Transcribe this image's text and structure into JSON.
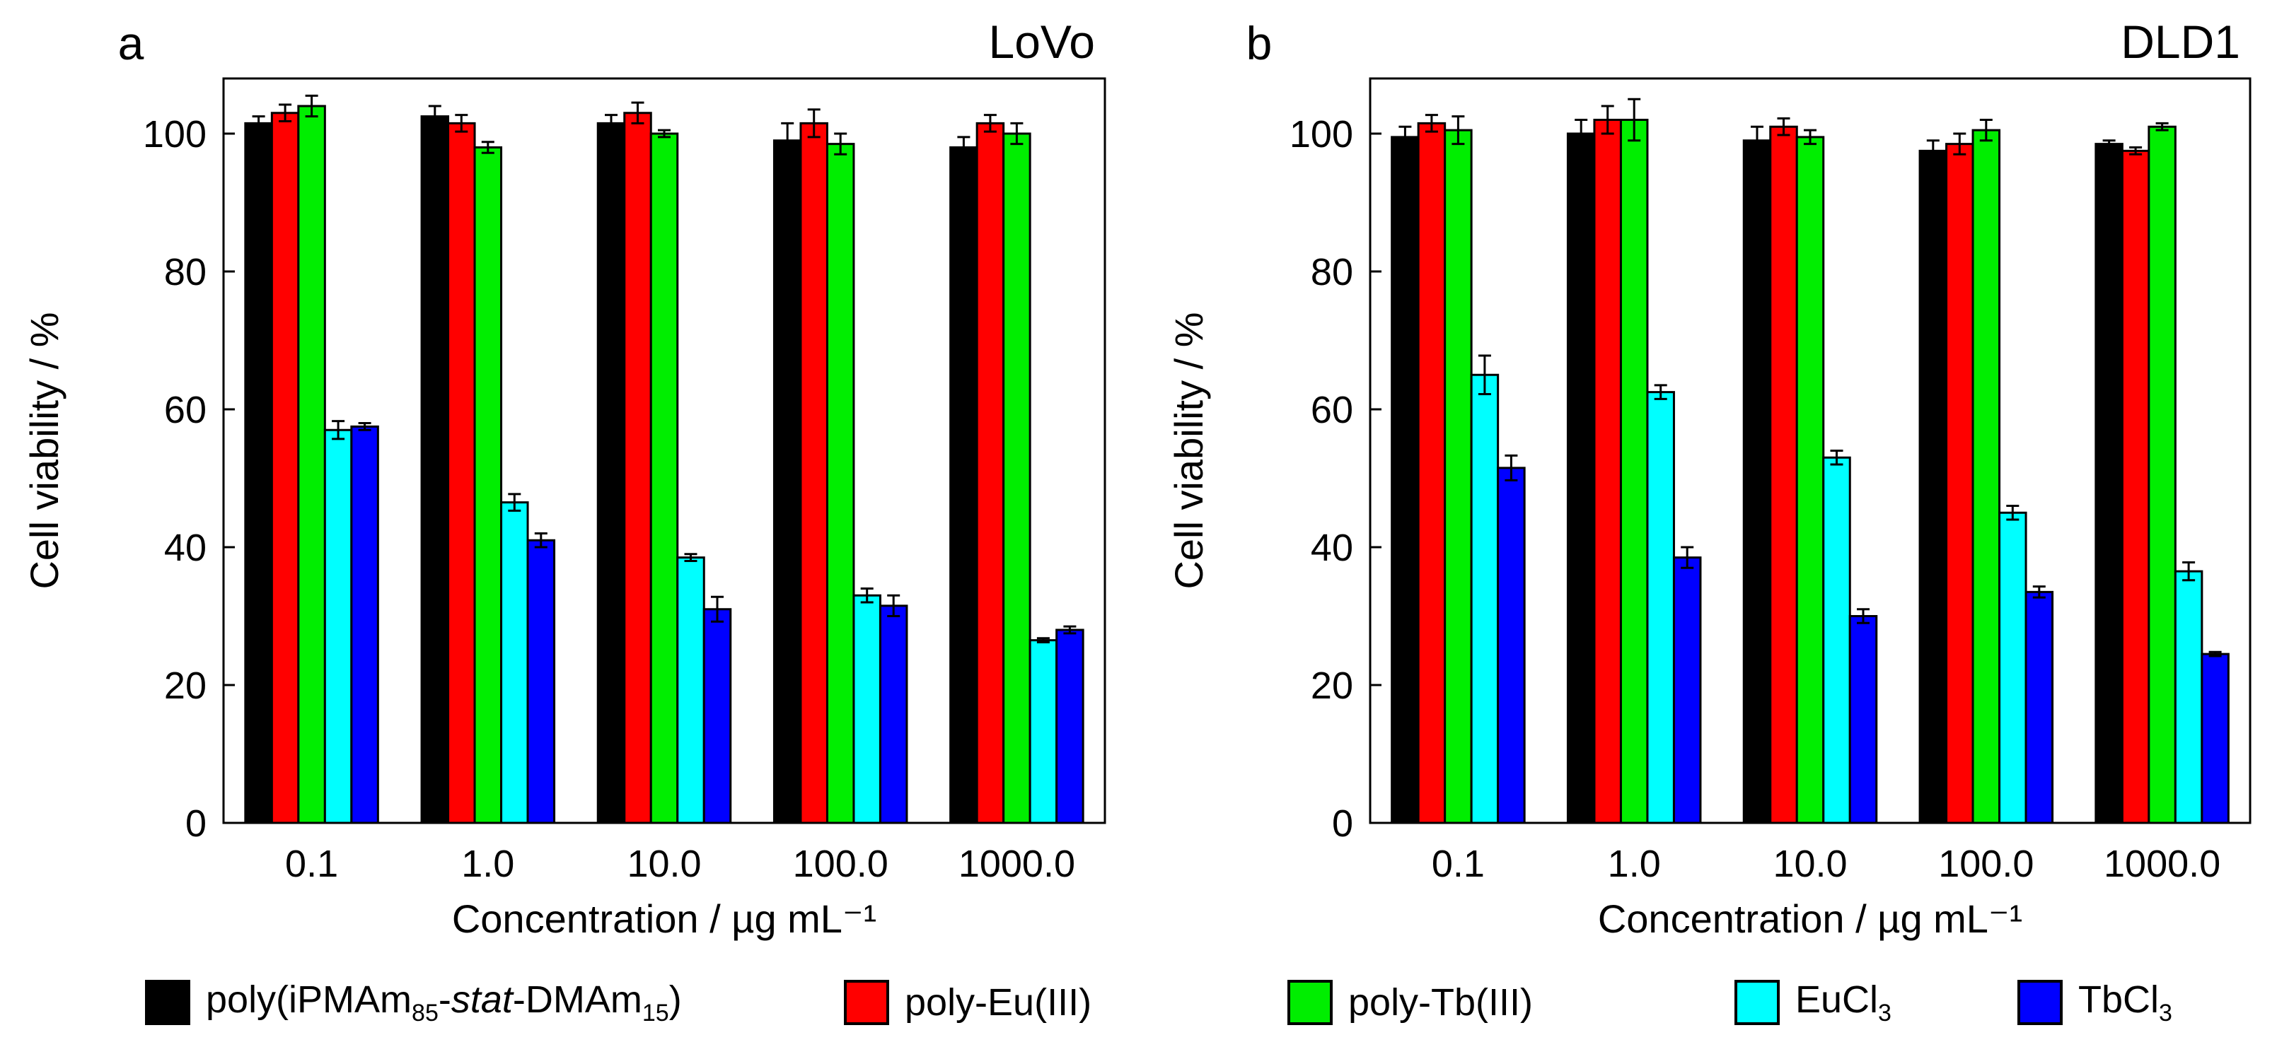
{
  "chart_data": [
    {
      "type": "bar",
      "panel_label": "a",
      "title": "LoVo",
      "xlabel": "Concentration / µg mL⁻¹",
      "ylabel": "Cell viability / %",
      "ylim": [
        0,
        108
      ],
      "yticks": [
        0,
        20,
        40,
        60,
        80,
        100
      ],
      "categories": [
        "0.1",
        "1.0",
        "10.0",
        "100.0",
        "1000.0"
      ],
      "series": [
        {
          "name": "poly(iPMAm85-stat-DMAm15)",
          "values": [
            101.5,
            102.5,
            101.5,
            99.0,
            98.0
          ],
          "errors": [
            1.0,
            1.5,
            1.2,
            2.5,
            1.5
          ]
        },
        {
          "name": "poly-Eu(III)",
          "values": [
            103.0,
            101.5,
            103.0,
            101.5,
            101.5
          ],
          "errors": [
            1.2,
            1.2,
            1.5,
            2.0,
            1.2
          ]
        },
        {
          "name": "poly-Tb(III)",
          "values": [
            104.0,
            98.0,
            100.0,
            98.5,
            100.0
          ],
          "errors": [
            1.5,
            0.8,
            0.5,
            1.5,
            1.5
          ]
        },
        {
          "name": "EuCl3",
          "values": [
            57.0,
            46.5,
            38.5,
            33.0,
            26.5
          ],
          "errors": [
            1.3,
            1.2,
            0.5,
            1.0,
            0.3
          ]
        },
        {
          "name": "TbCl3",
          "values": [
            57.5,
            41.0,
            31.0,
            31.5,
            28.0
          ],
          "errors": [
            0.5,
            1.0,
            1.8,
            1.5,
            0.5
          ]
        }
      ]
    },
    {
      "type": "bar",
      "panel_label": "b",
      "title": "DLD1",
      "xlabel": "Concentration / µg mL⁻¹",
      "ylabel": "Cell viability / %",
      "ylim": [
        0,
        108
      ],
      "yticks": [
        0,
        20,
        40,
        60,
        80,
        100
      ],
      "categories": [
        "0.1",
        "1.0",
        "10.0",
        "100.0",
        "1000.0"
      ],
      "series": [
        {
          "name": "poly(iPMAm85-stat-DMAm15)",
          "values": [
            99.5,
            100.0,
            99.0,
            97.5,
            98.5
          ],
          "errors": [
            1.5,
            2.0,
            2.0,
            1.5,
            0.5
          ]
        },
        {
          "name": "poly-Eu(III)",
          "values": [
            101.5,
            102.0,
            101.0,
            98.5,
            97.5
          ],
          "errors": [
            1.2,
            2.0,
            1.2,
            1.5,
            0.5
          ]
        },
        {
          "name": "poly-Tb(III)",
          "values": [
            100.5,
            102.0,
            99.5,
            100.5,
            101.0
          ],
          "errors": [
            2.0,
            3.0,
            1.0,
            1.5,
            0.5
          ]
        },
        {
          "name": "EuCl3",
          "values": [
            65.0,
            62.5,
            53.0,
            45.0,
            36.5
          ],
          "errors": [
            2.8,
            1.0,
            1.0,
            1.0,
            1.3
          ]
        },
        {
          "name": "TbCl3",
          "values": [
            51.5,
            38.5,
            30.0,
            33.5,
            24.5
          ],
          "errors": [
            1.8,
            1.5,
            1.0,
            0.8,
            0.3
          ]
        }
      ]
    }
  ],
  "legend": {
    "items": [
      {
        "key": "s0",
        "label": "poly(iPMAm85-stat-DMAm15)",
        "color": "#000000"
      },
      {
        "key": "s1",
        "label": "poly-Eu(III)",
        "color": "#ff0000"
      },
      {
        "key": "s2",
        "label": "poly-Tb(III)",
        "color": "#00ee00"
      },
      {
        "key": "s3",
        "label": "EuCl3",
        "color": "#00ffff"
      },
      {
        "key": "s4",
        "label": "TbCl3",
        "color": "#0000ff"
      }
    ],
    "text": {
      "s0_pre": "poly(iPMAm",
      "s0_sub1": "85",
      "s0_mid": "-",
      "s0_italic": "stat",
      "s0_mid2": "-DMAm",
      "s0_sub2": "15",
      "s0_post": ")",
      "s1": "poly-Eu(III)",
      "s2": "poly-Tb(III)",
      "s3_pre": "EuCl",
      "s3_sub": "3",
      "s4_pre": "TbCl",
      "s4_sub": "3"
    }
  },
  "colors": [
    "#000000",
    "#ff0000",
    "#00ee00",
    "#00ffff",
    "#0000ff"
  ]
}
